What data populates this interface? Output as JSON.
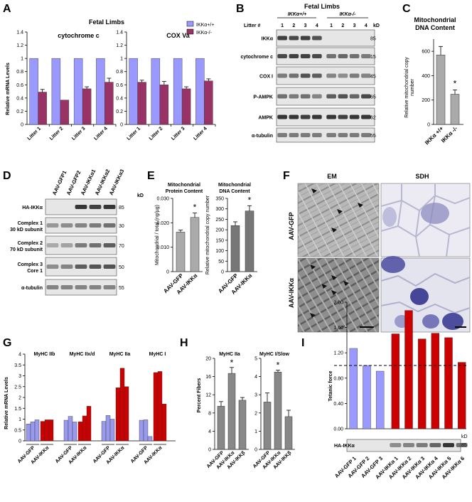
{
  "panels": {
    "A": {
      "letter": "A",
      "title": "Fetal Limbs",
      "ylabel": "Relative mRNA Levels",
      "legend": [
        {
          "label": "IKKα+/+",
          "color": "#9999ff"
        },
        {
          "label": "IKKα-/-",
          "color": "#993366"
        }
      ],
      "charts": [
        {
          "title": "cytochrome c",
          "categories": [
            "Litter 1",
            "Litter 2",
            "Litter 3",
            "Litter 4"
          ],
          "wt": [
            1,
            1,
            1,
            1
          ],
          "ko": [
            0.49,
            0.37,
            0.54,
            0.64
          ],
          "ko_err": [
            0.04,
            0,
            0.03,
            0.06
          ]
        },
        {
          "title": "COX Va",
          "categories": [
            "Litter 1",
            "Litter 2",
            "Litter 3",
            "Litter 4"
          ],
          "wt": [
            1,
            1,
            1,
            1
          ],
          "ko": [
            0.64,
            0.6,
            0.54,
            0.66
          ],
          "ko_err": [
            0.03,
            0.05,
            0.03,
            0.03
          ]
        }
      ],
      "yticks": [
        "0",
        "0.2",
        "0.4",
        "0.6",
        "0.8",
        "1",
        "1.2",
        "1.4"
      ]
    },
    "B": {
      "letter": "B",
      "title": "Fetal Limbs",
      "geno_wt": "IKKα+/+",
      "geno_ko": "IKKα-/-",
      "litter_label": "Litter #",
      "lanes": [
        "1",
        "2",
        "3",
        "4",
        "1",
        "2",
        "3",
        "4"
      ],
      "kd": "kD",
      "rows": [
        {
          "label": "IKKα",
          "kd": "85",
          "intensity": [
            0.85,
            0.8,
            0.85,
            0.75,
            0,
            0,
            0,
            0
          ]
        },
        {
          "label": "cytochrome c",
          "kd": "15",
          "intensity": [
            0.8,
            0.85,
            0.85,
            0.8,
            0.6,
            0.65,
            0.6,
            0.55
          ]
        },
        {
          "label": "COX I",
          "kd": "45",
          "intensity": [
            0.55,
            0.6,
            0.75,
            0.7,
            0.5,
            0.45,
            0.55,
            0.5
          ]
        },
        {
          "label": "P-AMPK",
          "kd": "65",
          "intensity": [
            0.6,
            0.55,
            0.6,
            0.5,
            0.7,
            0.75,
            0.65,
            0.8
          ]
        },
        {
          "label": "AMPK",
          "kd": "62",
          "intensity": [
            0.9,
            0.9,
            0.85,
            0.9,
            0.9,
            0.85,
            0.9,
            0.9
          ]
        },
        {
          "label": "α-tubulin",
          "kd": "55",
          "intensity": [
            0.55,
            0.55,
            0.55,
            0.55,
            0.55,
            0.55,
            0.55,
            0.55
          ]
        }
      ]
    },
    "C": {
      "letter": "C",
      "title_line1": "Mitochondrial",
      "title_line2": "DNA Content",
      "ylabel_line1": "Relative mitochondrial copy",
      "ylabel_line2": "number",
      "categories": [
        "IKKα +/+",
        "IKKα -/-"
      ],
      "values": [
        570,
        248
      ],
      "errors": [
        70,
        35
      ],
      "ylim": [
        0,
        700
      ],
      "yticks": [
        "0",
        "200",
        "400",
        "600"
      ],
      "star": "*"
    },
    "D": {
      "letter": "D",
      "lanes": [
        "AAV-GFP1",
        "AAV-GFP2",
        "AAV-IKKα1",
        "AAV-IKKα2",
        "AAV-IKKα3"
      ],
      "kd": "kD",
      "rows": [
        {
          "label1": "HA-IKKα",
          "label2": "",
          "kd": "85",
          "intensity": [
            0,
            0,
            0.9,
            0.85,
            0.9
          ]
        },
        {
          "label1": "Complex 1",
          "label2": "30 kD subunit",
          "kd": "30",
          "intensity": [
            0.4,
            0.45,
            0.5,
            0.55,
            0.6
          ]
        },
        {
          "label1": "Complex 2",
          "label2": "70 kD subunit",
          "kd": "70",
          "intensity": [
            0.3,
            0.35,
            0.55,
            0.6,
            0.7
          ]
        },
        {
          "label1": "Complex 3",
          "label2": "Core 1",
          "kd": "50",
          "intensity": [
            0.45,
            0.5,
            0.7,
            0.75,
            0.75
          ]
        },
        {
          "label1": "α-tubulin",
          "label2": "",
          "kd": "55",
          "intensity": [
            0.5,
            0.5,
            0.5,
            0.5,
            0.5
          ]
        }
      ]
    },
    "E": {
      "letter": "E",
      "charts": [
        {
          "title1": "Mitochondrial",
          "title2": "Protein Content",
          "ylabel": "Mitochondrial / total (ng/µg)",
          "categories": [
            "AAV-GFP",
            "AAV-IKKα"
          ],
          "values": [
            0.0162,
            0.0222
          ],
          "errors": [
            0.0008,
            0.0018
          ],
          "ylim": [
            0,
            0.03
          ],
          "yticks": [
            "0",
            "0.010",
            "0.020",
            "0.030"
          ],
          "color": "#aaaaaa",
          "star": "*"
        },
        {
          "title1": "Mitochondrial",
          "title2": "DNA Content",
          "ylabel": "Relative mitochondrial copy number",
          "categories": [
            "AAV-GFP",
            "AAV-IKKα"
          ],
          "values": [
            220,
            290
          ],
          "errors": [
            18,
            25
          ],
          "ylim": [
            0,
            350
          ],
          "yticks": [
            "0",
            "50",
            "100",
            "150",
            "200",
            "250",
            "300",
            "350"
          ],
          "color": "#777777",
          "star": "*"
        }
      ]
    },
    "F": {
      "letter": "F",
      "col_em": "EM",
      "col_sdh": "SDH",
      "row_gfp": "AAV-GFP",
      "row_ikk": "AAV-IKKα"
    },
    "G": {
      "letter": "G",
      "ylabel": "Relative mRNA Levels",
      "yticks": [
        "0",
        "0.5",
        "1",
        "1.5",
        "2",
        "2.5",
        "3",
        "3.5",
        "4"
      ],
      "ylim": [
        0,
        4
      ],
      "groups": [
        {
          "title": "MyHC IIb",
          "gfp": [
            0.78,
            0.88,
            0.97
          ],
          "ikk": [
            0.9,
            0.97,
            0.97
          ]
        },
        {
          "title": "MyHC IIx/d",
          "gfp": [
            0.95,
            1.13,
            0.87
          ],
          "ikk": [
            0.88,
            1.15,
            1.6
          ]
        },
        {
          "title": "MyHC IIa",
          "gfp": [
            0.9,
            1.17,
            1.0
          ],
          "ikk": [
            2.45,
            3.35,
            2.5
          ]
        },
        {
          "title": "MyHC I",
          "gfp": [
            0.95,
            0.97,
            0.2
          ],
          "ikk": [
            3.15,
            3.2,
            1.7
          ]
        }
      ],
      "cat_gfp": "AAV-GFP",
      "cat_ikk": "AAV-IKKα"
    },
    "H": {
      "letter": "H",
      "ylabel": "Percent Fibers",
      "charts": [
        {
          "title": "MyHC IIa",
          "categories": [
            "AAV-GFP",
            "AAV-IKKα",
            "AAV-IKKβ"
          ],
          "values": [
            9.5,
            16.7,
            10.8
          ],
          "errors": [
            1.0,
            1.3,
            0.6
          ],
          "ylim": [
            0,
            20
          ],
          "yticks": [
            "0",
            "4",
            "8",
            "12",
            "16",
            "20"
          ],
          "star": "*"
        },
        {
          "title": "MyHC I/Slow",
          "categories": [
            "AAV-GFP",
            "AAV-IKKα",
            "AAV-IKKβ"
          ],
          "values": [
            2.6,
            4.25,
            1.8
          ],
          "errors": [
            0.5,
            0.1,
            0.35
          ],
          "ylim": [
            0,
            5
          ],
          "yticks": [
            "0",
            "1",
            "2",
            "3",
            "4",
            "5"
          ],
          "star": "*"
        }
      ]
    },
    "I": {
      "letter": "I",
      "ylabel": "Tetanic force",
      "yticks": [
        "0.00",
        "0.40",
        "0.80",
        "1.20",
        "1.60",
        "2.00"
      ],
      "ylim": [
        0,
        2.0
      ],
      "categories": [
        "AAV-GFP 1",
        "AAV-GFP 2",
        "AAV-GFP 3",
        "AAV-IKKα 1",
        "AAV-IKKα 2",
        "AAV-IKKα 3",
        "AAV-IKKα 4",
        "AAV-IKKα 5",
        "AAV-IKKα 6"
      ],
      "values": [
        1.27,
        1.0,
        0.91,
        1.5,
        1.87,
        1.42,
        1.51,
        1.44,
        1.05
      ],
      "colors": [
        "#9999ff",
        "#9999ff",
        "#9999ff",
        "#cc0000",
        "#cc0000",
        "#cc0000",
        "#cc0000",
        "#cc0000",
        "#cc0000"
      ],
      "blot_label": "HA-IKKα",
      "kd": "kD",
      "kd_val": "85"
    }
  },
  "chart_data": [
    {
      "type": "bar",
      "title": "cytochrome c",
      "categories": [
        "Litter 1",
        "Litter 2",
        "Litter 3",
        "Litter 4"
      ],
      "series": [
        {
          "name": "IKKα+/+",
          "values": [
            1,
            1,
            1,
            1
          ]
        },
        {
          "name": "IKKα-/-",
          "values": [
            0.49,
            0.37,
            0.54,
            0.64
          ]
        }
      ],
      "ylabel": "Relative mRNA Levels",
      "ylim": [
        0,
        1.4
      ]
    },
    {
      "type": "bar",
      "title": "COX Va",
      "categories": [
        "Litter 1",
        "Litter 2",
        "Litter 3",
        "Litter 4"
      ],
      "series": [
        {
          "name": "IKKα+/+",
          "values": [
            1,
            1,
            1,
            1
          ]
        },
        {
          "name": "IKKα-/-",
          "values": [
            0.64,
            0.6,
            0.54,
            0.66
          ]
        }
      ],
      "ylim": [
        0,
        1.4
      ]
    },
    {
      "type": "bar",
      "title": "Mitochondrial DNA Content",
      "categories": [
        "IKKα +/+",
        "IKKα -/-"
      ],
      "values": [
        570,
        248
      ],
      "ylim": [
        0,
        700
      ]
    },
    {
      "type": "bar",
      "title": "Mitochondrial Protein Content",
      "categories": [
        "AAV-GFP",
        "AAV-IKKα"
      ],
      "values": [
        0.0162,
        0.0222
      ],
      "ylim": [
        0,
        0.03
      ]
    },
    {
      "type": "bar",
      "title": "Mitochondrial DNA Content",
      "categories": [
        "AAV-GFP",
        "AAV-IKKα"
      ],
      "values": [
        220,
        290
      ],
      "ylim": [
        0,
        350
      ]
    },
    {
      "type": "bar",
      "ylabel": "Relative mRNA Levels",
      "categories": [
        "MyHC IIb",
        "MyHC IIx/d",
        "MyHC IIa",
        "MyHC I"
      ],
      "ylim": [
        0,
        4
      ]
    },
    {
      "type": "bar",
      "title": "MyHC IIa",
      "categories": [
        "AAV-GFP",
        "AAV-IKKα",
        "AAV-IKKβ"
      ],
      "values": [
        9.5,
        16.7,
        10.8
      ],
      "ylabel": "Percent Fibers",
      "ylim": [
        0,
        20
      ]
    },
    {
      "type": "bar",
      "title": "MyHC I/Slow",
      "categories": [
        "AAV-GFP",
        "AAV-IKKα",
        "AAV-IKKβ"
      ],
      "values": [
        2.6,
        4.25,
        1.8
      ],
      "ylim": [
        0,
        5
      ]
    },
    {
      "type": "bar",
      "ylabel": "Tetanic force",
      "categories": [
        "AAV-GFP 1",
        "AAV-GFP 2",
        "AAV-GFP 3",
        "AAV-IKKα 1",
        "AAV-IKKα 2",
        "AAV-IKKα 3",
        "AAV-IKKα 4",
        "AAV-IKKα 5",
        "AAV-IKKα 6"
      ],
      "values": [
        1.27,
        1.0,
        0.91,
        1.5,
        1.87,
        1.42,
        1.51,
        1.44,
        1.05
      ],
      "ylim": [
        0,
        2.0
      ]
    }
  ]
}
